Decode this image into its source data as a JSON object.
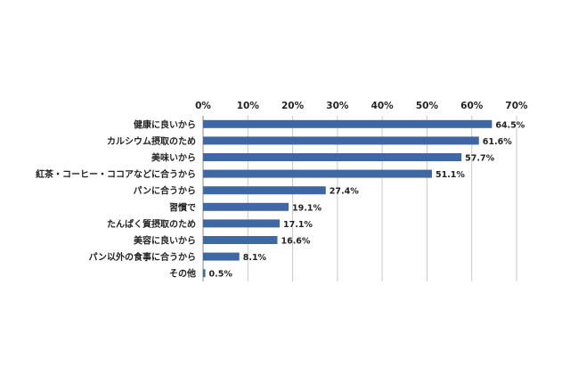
{
  "chart_data": {
    "type": "bar",
    "orientation": "horizontal",
    "categories": [
      "健康に良いから",
      "カルシウム摂取のため",
      "美味いから",
      "紅茶・コーヒー・ココアなどに合うから",
      "パンに合うから",
      "習慣で",
      "たんぱく質摂取のため",
      "美容に良いから",
      "パン以外の食事に合うから",
      "その他"
    ],
    "values": [
      64.5,
      61.6,
      57.7,
      51.1,
      27.4,
      19.1,
      17.1,
      16.6,
      8.1,
      0.5
    ],
    "value_labels": [
      "64.5%",
      "61.6%",
      "57.7%",
      "51.1%",
      "27.4%",
      "19.1%",
      "17.1%",
      "16.6%",
      "8.1%",
      "0.5%"
    ],
    "xlim": [
      0,
      70
    ],
    "xticks": [
      "0%",
      "10%",
      "20%",
      "30%",
      "40%",
      "50%",
      "60%",
      "70%"
    ],
    "tick_position": "top",
    "grid": true,
    "legend": "none",
    "bar_color": "#3f67a3"
  }
}
